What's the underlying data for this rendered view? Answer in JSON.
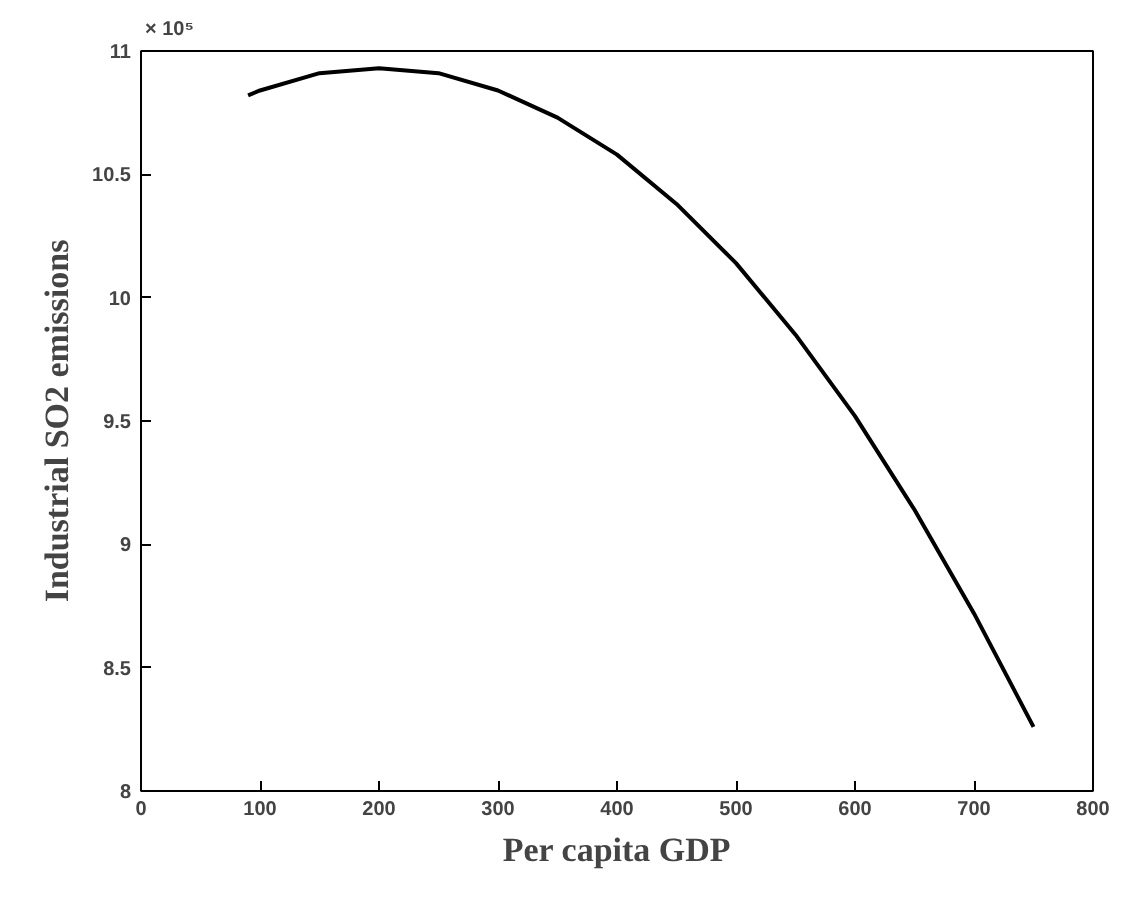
{
  "chart_data": {
    "type": "line",
    "xlabel": "Per capita GDP",
    "ylabel": "Industrial SO2 emissions",
    "annotations": [
      "× 10⁵"
    ],
    "x": [
      90,
      100,
      150,
      200,
      250,
      300,
      350,
      400,
      450,
      500,
      550,
      600,
      650,
      700,
      750
    ],
    "series": [
      {
        "color": "#000000",
        "values": [
          10.82,
          10.84,
          10.91,
          10.93,
          10.91,
          10.84,
          10.73,
          10.58,
          10.38,
          10.14,
          9.85,
          9.52,
          9.14,
          8.72,
          8.26
        ]
      }
    ],
    "xlim": [
      0,
      800
    ],
    "xticks": [
      0,
      100,
      200,
      300,
      400,
      500,
      600,
      700,
      800
    ],
    "ylim": [
      8,
      11
    ],
    "yticks": [
      8,
      8.5,
      9,
      9.5,
      10,
      10.5,
      11
    ],
    "grid": false,
    "line_style": "solid",
    "marker": "none"
  }
}
